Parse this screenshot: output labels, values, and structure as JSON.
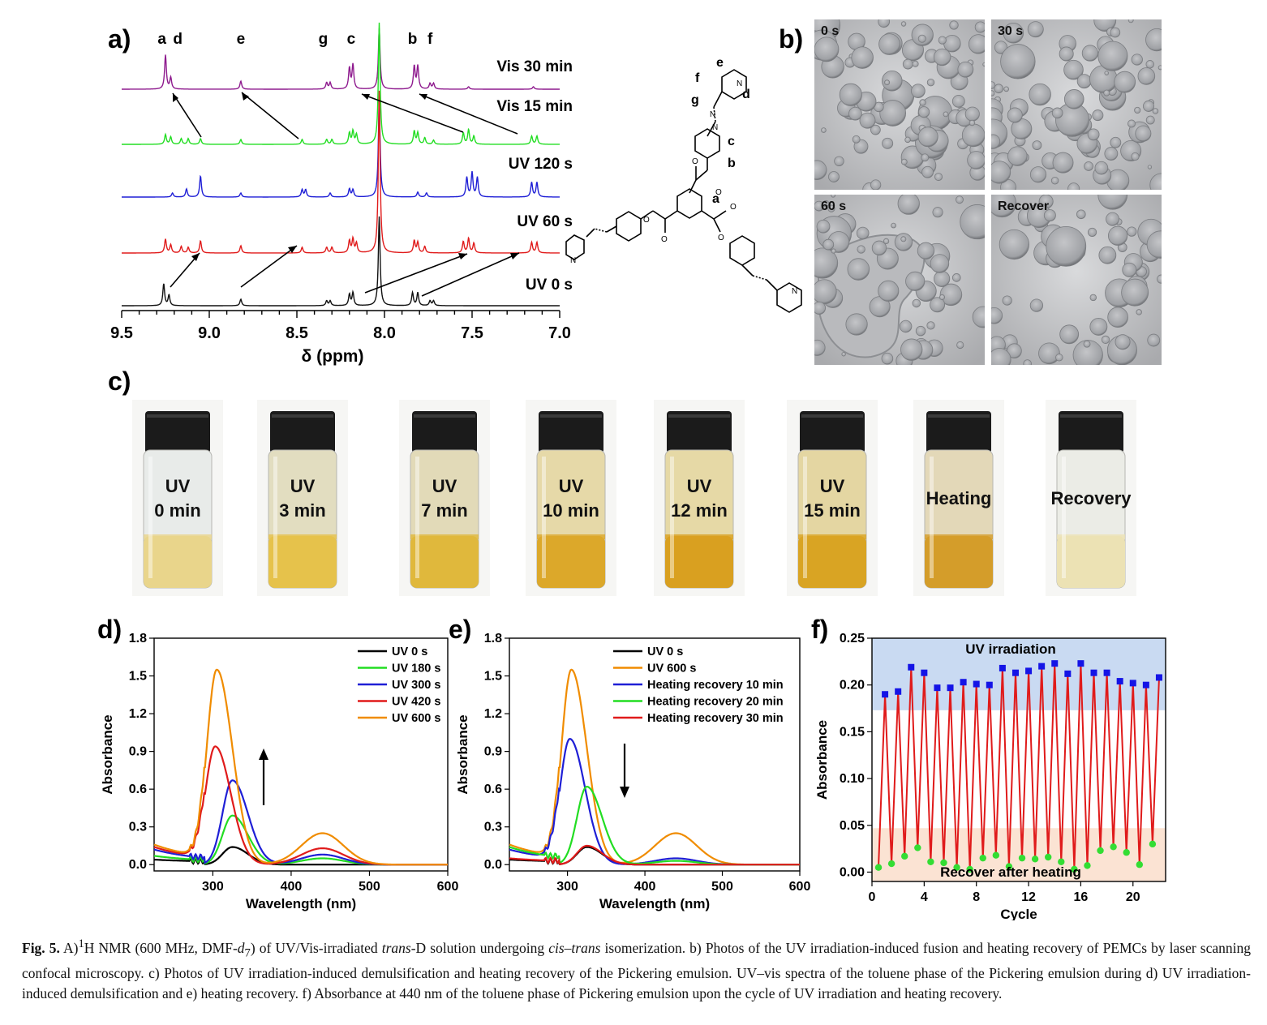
{
  "panels": {
    "a": "a)",
    "b": "b)",
    "c": "c)",
    "d": "d)",
    "e": "e)",
    "f": "f)"
  },
  "nmr": {
    "peak_letters": [
      {
        "text": "a",
        "ppm": 9.27
      },
      {
        "text": "d",
        "ppm": 9.18
      },
      {
        "text": "e",
        "ppm": 8.82
      },
      {
        "text": "g",
        "ppm": 8.35
      },
      {
        "text": "c",
        "ppm": 8.19
      },
      {
        "text": "b",
        "ppm": 7.84
      },
      {
        "text": "f",
        "ppm": 7.74
      }
    ],
    "trace_labels": [
      "Vis 30 min",
      "Vis 15 min",
      "UV 120 s",
      "UV 60 s",
      "UV 0 s"
    ],
    "trace_colors": [
      "#8e1a8e",
      "#22dd22",
      "#1f1fd6",
      "#e01b1b",
      "#111111"
    ],
    "x_ticks": [
      "9.5",
      "9.0",
      "8.5",
      "8.0",
      "7.5",
      "7.0"
    ],
    "x_label": "δ (ppm)"
  },
  "molecule": {
    "labels": [
      "e",
      "f",
      "d",
      "g",
      "c",
      "b",
      "a"
    ]
  },
  "microscopy": {
    "labels": [
      "0 s",
      "30 s",
      "60 s",
      "Recover"
    ]
  },
  "vials": [
    {
      "line1": "UV",
      "line2": "0 min"
    },
    {
      "line1": "UV",
      "line2": "3 min"
    },
    {
      "line1": "UV",
      "line2": "7 min"
    },
    {
      "line1": "UV",
      "line2": "10 min"
    },
    {
      "line1": "UV",
      "line2": "12 min"
    },
    {
      "line1": "UV",
      "line2": "15 min"
    },
    {
      "line1": "Heating",
      "line2": ""
    },
    {
      "line1": "Recovery",
      "line2": ""
    }
  ],
  "chart_data": [
    {
      "id": "d",
      "type": "line",
      "xlabel": "Wavelength (nm)",
      "ylabel": "Absorbance",
      "xlim": [
        225,
        600
      ],
      "ylim": [
        -0.05,
        1.8
      ],
      "x_ticks": [
        "300",
        "400",
        "500",
        "600"
      ],
      "y_ticks": [
        "0.0",
        "0.3",
        "0.6",
        "0.9",
        "1.2",
        "1.5",
        "1.8"
      ],
      "legend_position": "top-right",
      "annotation": "arrow pointing up",
      "series": [
        {
          "name": "UV 0 s",
          "color": "#000000",
          "peak": 0.14,
          "band": 0.0,
          "base": 0.02
        },
        {
          "name": "UV 180 s",
          "color": "#22dd22",
          "peak": 0.39,
          "band": 0.05,
          "base": 0.05
        },
        {
          "name": "UV 300 s",
          "color": "#1f1fd6",
          "peak": 0.67,
          "band": 0.08,
          "base": 0.1
        },
        {
          "name": "UV 420 s",
          "color": "#e01b1b",
          "peak": 0.94,
          "band": 0.13,
          "base": 0.12
        },
        {
          "name": "UV 600 s",
          "color": "#f08c00",
          "peak": 1.55,
          "band": 0.25,
          "base": 0.14
        }
      ]
    },
    {
      "id": "e",
      "type": "line",
      "xlabel": "Wavelength (nm)",
      "ylabel": "Absorbance",
      "xlim": [
        225,
        600
      ],
      "ylim": [
        -0.05,
        1.8
      ],
      "x_ticks": [
        "300",
        "400",
        "500",
        "600"
      ],
      "y_ticks": [
        "0.0",
        "0.3",
        "0.6",
        "0.9",
        "1.2",
        "1.5",
        "1.8"
      ],
      "legend_position": "top-right",
      "annotation": "arrow pointing down",
      "series": [
        {
          "name": "UV 0 s",
          "color": "#000000",
          "peak": 0.14,
          "band": 0.0,
          "base": 0.02
        },
        {
          "name": "UV 600 s",
          "color": "#f08c00",
          "peak": 1.55,
          "band": 0.25,
          "base": 0.14
        },
        {
          "name": "Heating recovery 10 min",
          "color": "#1f1fd6",
          "peak": 1.0,
          "band": 0.05,
          "base": 0.1
        },
        {
          "name": "Heating recovery 20 min",
          "color": "#22dd22",
          "peak": 0.62,
          "band": 0.03,
          "base": 0.12
        },
        {
          "name": "Heating recovery 30 min",
          "color": "#e01b1b",
          "peak": 0.15,
          "band": 0.0,
          "base": 0.03
        }
      ]
    },
    {
      "id": "f",
      "type": "line",
      "xlabel": "Cycle",
      "ylabel": "Absorbance",
      "xlim": [
        0,
        22.5
      ],
      "ylim": [
        -0.01,
        0.25
      ],
      "x_ticks": [
        "0",
        "4",
        "8",
        "12",
        "16",
        "20"
      ],
      "y_ticks": [
        "0.00",
        "0.05",
        "0.10",
        "0.15",
        "0.20",
        "0.25"
      ],
      "region_labels": [
        "UV irradiation",
        "Recover after heating"
      ],
      "region_colors": [
        "#c9daf2",
        "#fbe3d3"
      ],
      "line_color": "#e01b1b",
      "uv_color": "#1414e6",
      "heat_color": "#33dd33",
      "x": [
        0.5,
        1,
        1.5,
        2,
        2.5,
        3,
        3.5,
        4,
        4.5,
        5,
        5.5,
        6,
        6.5,
        7,
        7.5,
        8,
        8.5,
        9,
        9.5,
        10,
        10.5,
        11,
        11.5,
        12,
        12.5,
        13,
        13.5,
        14,
        14.5,
        15,
        15.5,
        16,
        16.5,
        17,
        17.5,
        18,
        18.5,
        19,
        19.5,
        20,
        20.5,
        21,
        21.5,
        22
      ],
      "y": [
        0.005,
        0.19,
        0.009,
        0.193,
        0.017,
        0.219,
        0.026,
        0.213,
        0.011,
        0.197,
        0.01,
        0.197,
        0.005,
        0.203,
        0.003,
        0.201,
        0.015,
        0.2,
        0.018,
        0.218,
        0.006,
        0.213,
        0.015,
        0.215,
        0.014,
        0.22,
        0.016,
        0.223,
        0.011,
        0.212,
        0.003,
        0.223,
        0.007,
        0.213,
        0.023,
        0.213,
        0.027,
        0.204,
        0.021,
        0.202,
        0.008,
        0.2,
        0.03,
        0.208
      ]
    }
  ],
  "caption": {
    "fig_label": "Fig. 5.",
    "s1": "A)",
    "s1_sup": "1",
    "s2": "H NMR (600 MHz, DMF-",
    "s2_it": "d",
    "s2_sub": "7",
    "s3": ") of UV/Vis-irradiated ",
    "s3_it": "trans",
    "s4": "-D solution undergoing ",
    "s4_it": "cis–trans",
    "s5": " isomerization. b) Photos of the UV irradiation-induced fusion and heating recovery of PEMCs by laser scanning confocal microscopy. c) Photos of UV irradiation-induced demulsification and heating recovery of the Pickering emulsion. UV–vis spectra of the toluene phase of the Pickering emulsion during d) UV irradiation-induced demulsification and e) heating recovery. f) Absorbance at 440 nm of the toluene phase of Pickering emulsion upon the cycle of UV irradiation and heating recovery."
  }
}
